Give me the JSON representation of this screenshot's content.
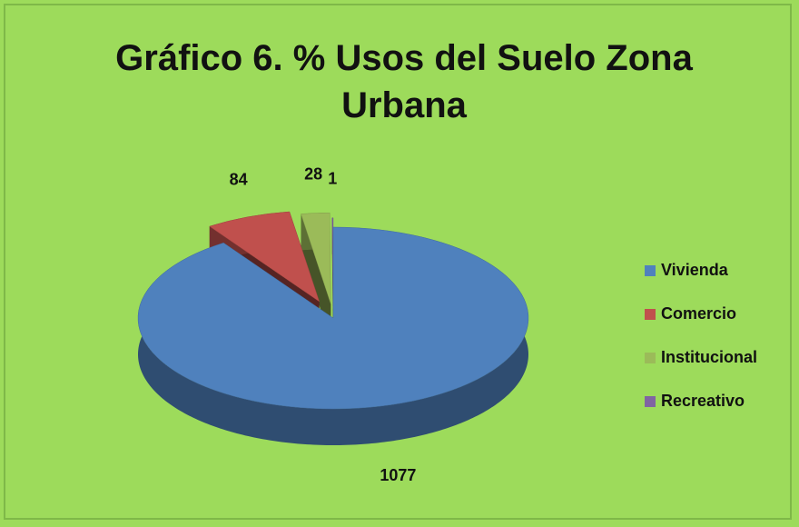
{
  "chart_data": {
    "type": "pie3d",
    "title": "Gráfico 6. % Usos del Suelo Zona Urbana",
    "categories": [
      "Vivienda",
      "Comercio",
      "Institucional",
      "Recreativo"
    ],
    "values": [
      1077,
      84,
      28,
      1
    ],
    "colors": [
      "#4f81bd",
      "#c0504d",
      "#9bbb59",
      "#8064a2"
    ],
    "legend": "right"
  }
}
